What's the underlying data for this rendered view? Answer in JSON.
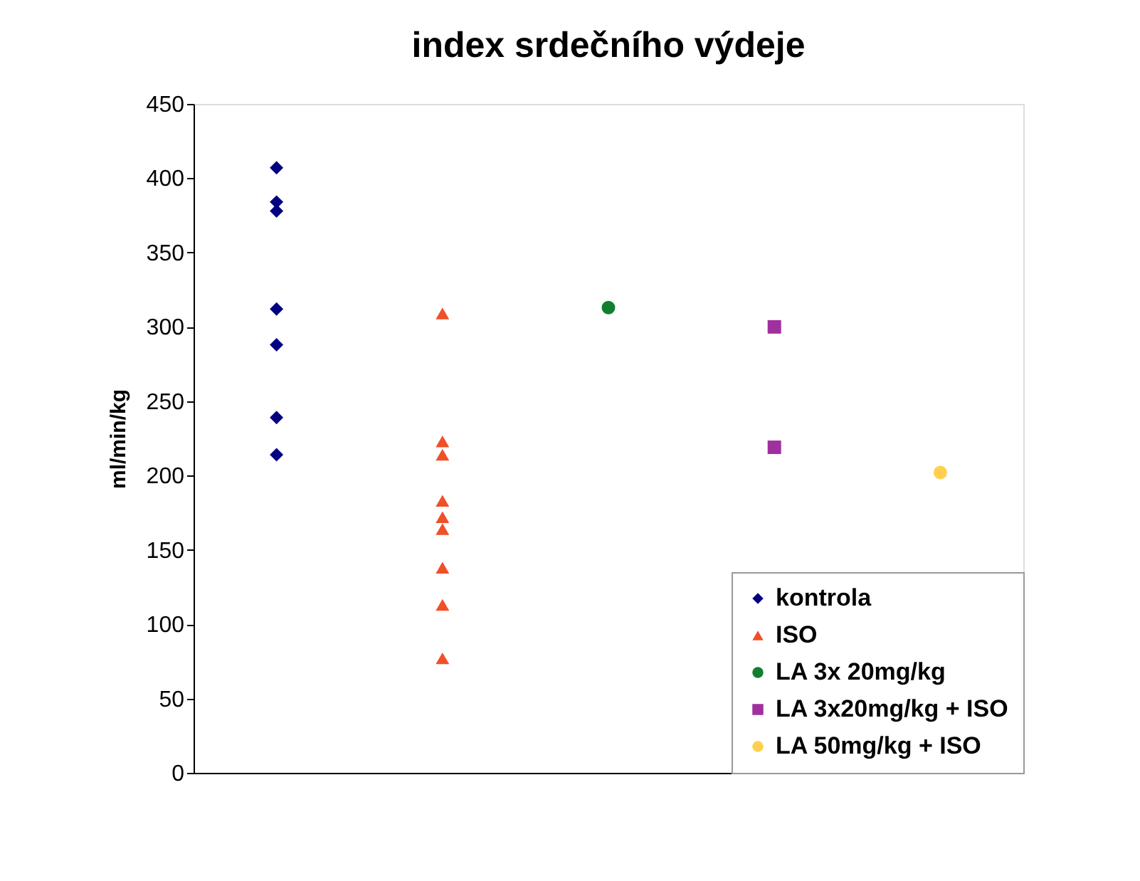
{
  "chart_data": {
    "type": "scatter",
    "title": "index srdečního výdeje",
    "ylabel": "ml/min/kg",
    "categories": [
      null,
      null,
      null,
      null,
      null
    ],
    "ylim": [
      0,
      450
    ],
    "yticks": [
      0,
      50,
      100,
      150,
      200,
      250,
      300,
      350,
      400,
      450
    ],
    "tick_labels": "y",
    "grid": false,
    "legend": "bottom right",
    "series": [
      {
        "name": "kontrola",
        "color": "#000080",
        "marker": "diamond",
        "values": [
          407,
          null,
          null,
          null,
          null
        ]
      },
      {
        "color": "#000080",
        "marker": "diamond",
        "values": [
          384,
          null,
          null,
          null,
          null
        ]
      },
      {
        "color": "#000080",
        "marker": "diamond",
        "values": [
          378,
          null,
          null,
          null,
          null
        ]
      },
      {
        "color": "#000080",
        "marker": "diamond",
        "values": [
          312,
          null,
          null,
          null,
          null
        ]
      },
      {
        "color": "#000080",
        "marker": "diamond",
        "values": [
          288,
          null,
          null,
          null,
          null
        ]
      },
      {
        "color": "#000080",
        "marker": "diamond",
        "values": [
          239,
          null,
          null,
          null,
          null
        ]
      },
      {
        "color": "#000080",
        "marker": "diamond",
        "values": [
          214,
          null,
          null,
          null,
          null
        ]
      },
      {
        "name": "ISO",
        "color": "#f05028",
        "marker": "triangle",
        "values": [
          null,
          309,
          null,
          null,
          null
        ]
      },
      {
        "color": "#f05028",
        "marker": "triangle",
        "values": [
          null,
          223,
          null,
          null,
          null
        ]
      },
      {
        "color": "#f05028",
        "marker": "triangle",
        "values": [
          null,
          214,
          null,
          null,
          null
        ]
      },
      {
        "color": "#f05028",
        "marker": "triangle",
        "values": [
          null,
          183,
          null,
          null,
          null
        ]
      },
      {
        "color": "#f05028",
        "marker": "triangle",
        "values": [
          null,
          172,
          null,
          null,
          null
        ]
      },
      {
        "color": "#f05028",
        "marker": "triangle",
        "values": [
          null,
          164,
          null,
          null,
          null
        ]
      },
      {
        "color": "#f05028",
        "marker": "triangle",
        "values": [
          null,
          138,
          null,
          null,
          null
        ]
      },
      {
        "color": "#f05028",
        "marker": "triangle",
        "values": [
          null,
          113,
          null,
          null,
          null
        ]
      },
      {
        "color": "#f05028",
        "marker": "triangle",
        "values": [
          null,
          77,
          null,
          null,
          null
        ]
      },
      {
        "name": "LA 3x 20mg/kg",
        "color": "#108030",
        "marker": "circle",
        "values": [
          null,
          null,
          313,
          null,
          null
        ]
      },
      {
        "name": "LA 3x20mg/kg + ISO",
        "color": "#a030a0",
        "marker": "square",
        "values": [
          null,
          null,
          null,
          300,
          null
        ]
      },
      {
        "color": "#a030a0",
        "marker": "square",
        "values": [
          null,
          null,
          null,
          219,
          null
        ]
      },
      {
        "name": "LA 50mg/kg + ISO",
        "color": "#ffd050",
        "marker": "circle",
        "values": [
          null,
          null,
          null,
          null,
          202
        ]
      }
    ]
  }
}
